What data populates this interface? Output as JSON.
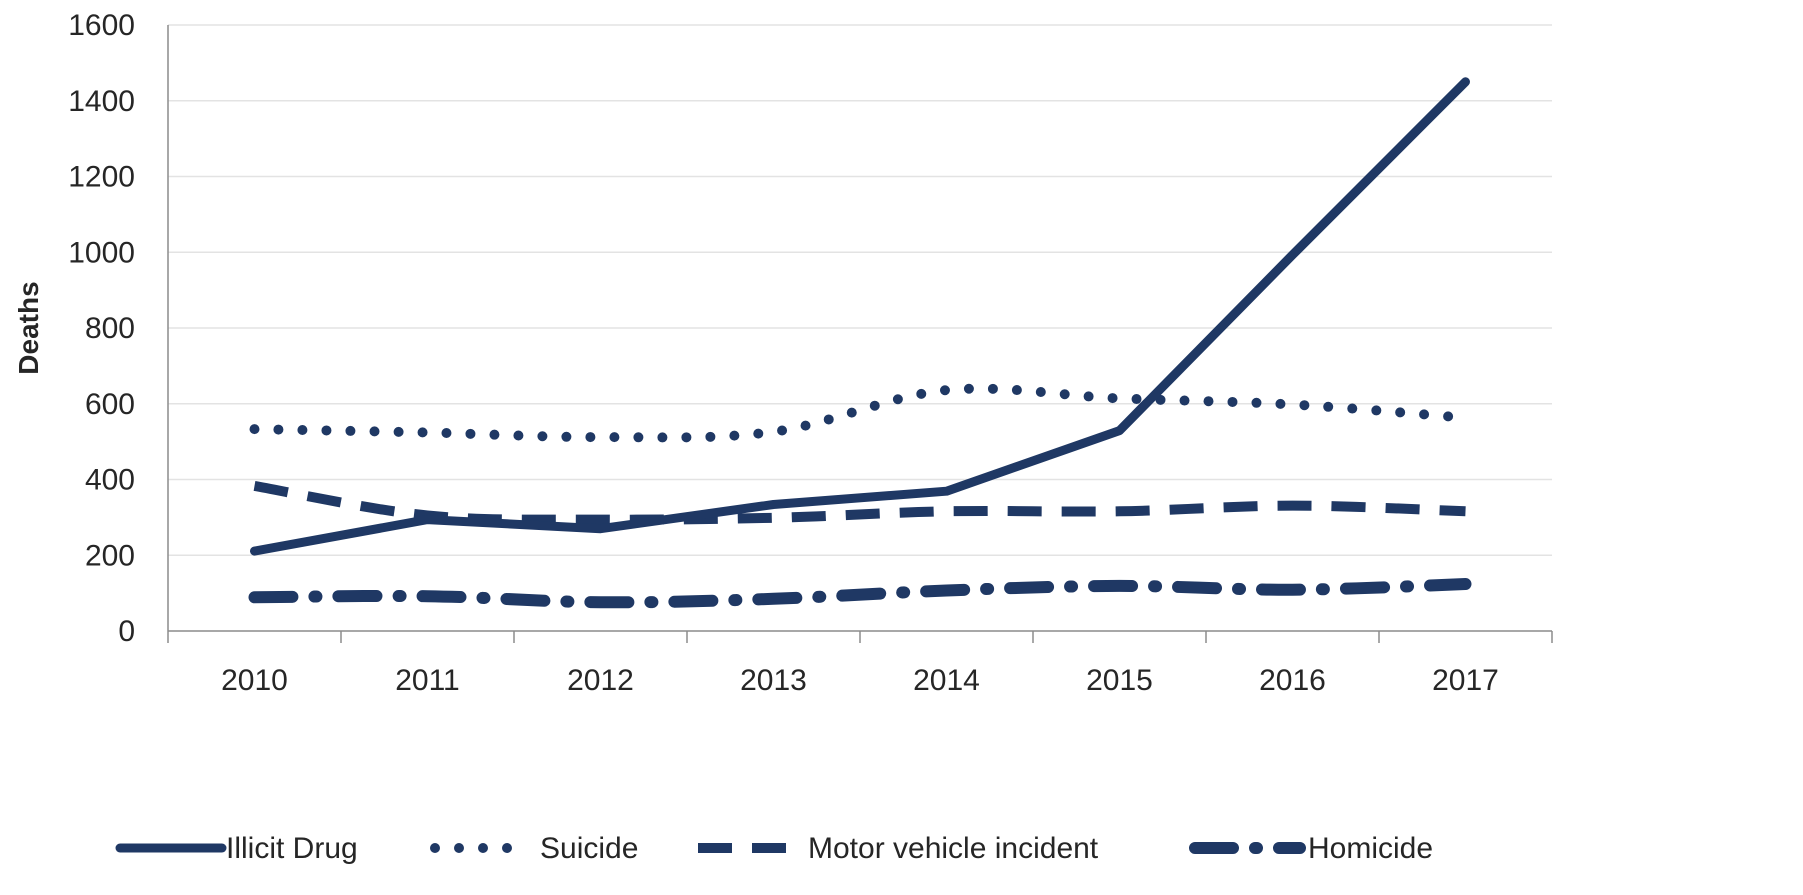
{
  "chart_data": {
    "type": "line",
    "title": "",
    "xlabel": "",
    "ylabel": "Deaths",
    "categories": [
      "2010",
      "2011",
      "2012",
      "2013",
      "2014",
      "2015",
      "2016",
      "2017"
    ],
    "ylim": [
      0,
      1600
    ],
    "yticks": [
      0,
      200,
      400,
      600,
      800,
      1000,
      1200,
      1400,
      1600
    ],
    "grid": true,
    "legend_position": "bottom",
    "line_color": "#1f3864",
    "series": [
      {
        "name": "Illicit Drug",
        "style": "solid",
        "values": [
          211,
          294,
          270,
          334,
          369,
          529,
          993,
          1450
        ]
      },
      {
        "name": "Suicide",
        "style": "dotted",
        "values": [
          533,
          524,
          512,
          526,
          636,
          614,
          598,
          563
        ]
      },
      {
        "name": "Motor vehicle incident",
        "style": "dashed",
        "values": [
          383,
          305,
          294,
          299,
          316,
          316,
          331,
          316
        ]
      },
      {
        "name": "Homicide",
        "style": "dash-dot",
        "values": [
          89,
          92,
          76,
          85,
          107,
          119,
          109,
          124
        ]
      }
    ]
  }
}
